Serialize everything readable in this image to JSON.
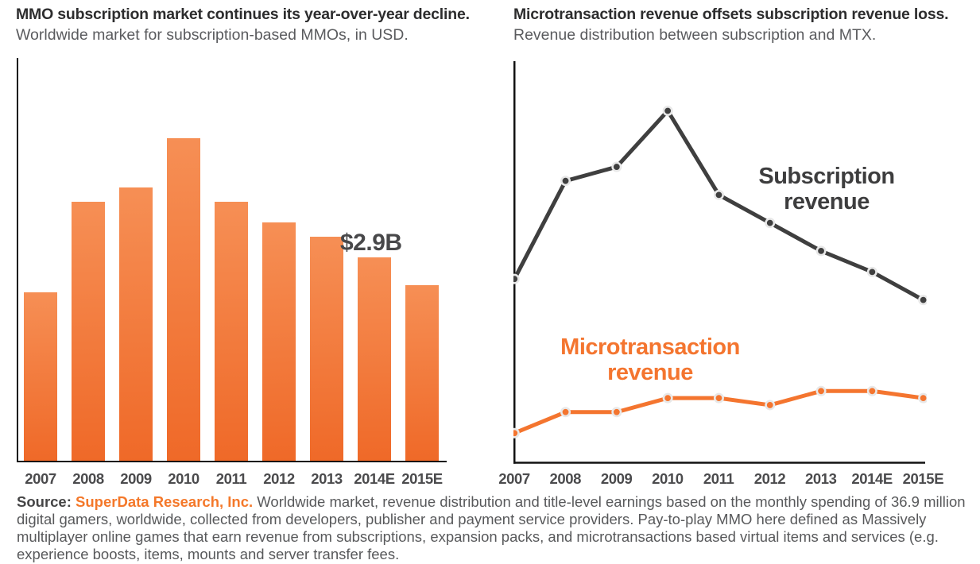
{
  "colors": {
    "brand_orange": "#f4782a",
    "bar_gradient_top": "#f68f55",
    "bar_gradient_bottom": "#ef6928",
    "subscription_line": "#3f3f3f",
    "microtransaction_line": "#f4752f",
    "axis": "#121212",
    "title_text": "#2d2d2e",
    "subtitle_text": "#5a5b5e",
    "tick_text": "#4b4b4d",
    "marker_halo": "#e8e8e8"
  },
  "chart_data": [
    {
      "type": "bar",
      "title": "MMO subscription market continues its year-over-year decline.",
      "subtitle": "Worldwide market for subscription-based MMOs, in USD.",
      "categories": [
        "2007",
        "2008",
        "2009",
        "2010",
        "2011",
        "2012",
        "2013",
        "2014E",
        "2015E"
      ],
      "values": [
        2.4,
        3.7,
        3.9,
        4.6,
        3.7,
        3.4,
        3.2,
        2.9,
        2.5
      ],
      "unit": "USD billions (estimated from bar heights; only 2014E is labeled on the chart)",
      "data_label": {
        "category": "2014E",
        "text": "$2.9B"
      },
      "xlabel": "",
      "ylabel": "",
      "ylim": [
        0,
        5.7
      ],
      "grid": false,
      "legend": "none"
    },
    {
      "type": "line",
      "title": "Microtransaction revenue offsets subscription revenue loss.",
      "subtitle": "Revenue distribution between subscription and MTX.",
      "categories": [
        "2007",
        "2008",
        "2009",
        "2010",
        "2011",
        "2012",
        "2013",
        "2014E",
        "2015E"
      ],
      "series": [
        {
          "name": "Subscription revenue",
          "color": "#3f3f3f",
          "values": [
            2.6,
            4.0,
            4.2,
            5.0,
            3.8,
            3.4,
            3.0,
            2.7,
            2.3
          ]
        },
        {
          "name": "Microtransaction revenue",
          "color": "#f4752f",
          "values": [
            0.4,
            0.7,
            0.7,
            0.9,
            0.9,
            0.8,
            1.0,
            1.0,
            0.9
          ]
        }
      ],
      "unit": "USD billions (estimated; no y-axis labels shown)",
      "xlabel": "",
      "ylabel": "",
      "ylim": [
        0,
        5.7
      ],
      "grid": false,
      "legend": "inline-labels"
    }
  ],
  "source": {
    "label": "Source:",
    "org": "SuperData Research, Inc.",
    "text": "Worldwide market, revenue distribution and title-level earnings based on the monthly spending of 36.9 million digital gamers, worldwide, collected from developers, publisher and payment service providers. Pay-to-play MMO here defined as Massively multiplayer online games that earn revenue from subscriptions, expansion packs, and microtransactions based virtual items and services (e.g. experience boosts, items, mounts and server transfer fees."
  }
}
